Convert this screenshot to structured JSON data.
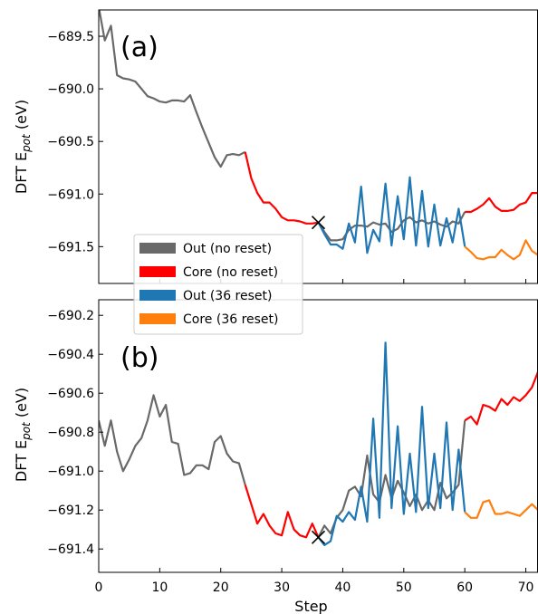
{
  "chart_data": {
    "type": "line",
    "legend": {
      "placement": "lower-left of panel (a)",
      "entries": [
        {
          "label": "Out (no reset)",
          "color": "#696969"
        },
        {
          "label": "Core (no reset)",
          "color": "#ff0000"
        },
        {
          "label": "Out (36 reset)",
          "color": "#1f77b4"
        },
        {
          "label": "Core (36 reset)",
          "color": "#ff7f0e"
        }
      ]
    },
    "xlabel": "Step",
    "xlim": [
      0,
      72
    ],
    "x_ticks": [
      0,
      10,
      20,
      30,
      40,
      50,
      60,
      70
    ],
    "marker": {
      "symbol": "×",
      "x": 36
    },
    "panels": [
      {
        "tag": "(a)",
        "ylabel_main": "DFT E",
        "ylabel_sub": "pot",
        "ylabel_tail": " (eV)",
        "ylim": [
          -691.85,
          -689.25
        ],
        "y_ticks": [
          "−689.5",
          "−690.0",
          "−690.5",
          "−691.0",
          "−691.5"
        ],
        "y_tick_values": [
          -689.5,
          -690.0,
          -690.5,
          -691.0,
          -691.5
        ],
        "marker_y": -691.27,
        "series": [
          {
            "name": "Out (no reset)",
            "color": "#696969",
            "x": [
              0,
              1,
              2,
              3,
              4,
              5,
              6,
              7,
              8,
              9,
              10,
              11,
              12,
              13,
              14,
              15,
              16,
              17,
              18,
              19,
              20,
              21,
              22,
              23,
              24
            ],
            "y": [
              -689.22,
              -689.54,
              -689.4,
              -689.87,
              -689.9,
              -689.91,
              -689.93,
              -690.0,
              -690.07,
              -690.09,
              -690.12,
              -690.13,
              -690.11,
              -690.11,
              -690.12,
              -690.06,
              -690.22,
              -690.37,
              -690.51,
              -690.65,
              -690.74,
              -690.63,
              -690.62,
              -690.63,
              -690.6
            ]
          },
          {
            "name": "Core (no reset)",
            "color": "#ff0000",
            "x": [
              24,
              25,
              26,
              27,
              28,
              29,
              30,
              31,
              32,
              33,
              34,
              35,
              36
            ],
            "y": [
              -690.6,
              -690.85,
              -690.99,
              -691.08,
              -691.08,
              -691.14,
              -691.22,
              -691.25,
              -691.25,
              -691.26,
              -691.28,
              -691.28,
              -691.27
            ]
          },
          {
            "name": "Out (no reset)",
            "color": "#696969",
            "x": [
              36,
              37,
              38,
              39,
              40,
              41,
              42,
              43,
              44,
              45,
              46,
              47,
              48,
              49,
              50,
              51,
              52,
              53,
              54,
              55,
              56,
              57,
              58,
              59,
              60
            ],
            "y": [
              -691.27,
              -691.36,
              -691.44,
              -691.44,
              -691.43,
              -691.34,
              -691.3,
              -691.3,
              -691.31,
              -691.27,
              -691.29,
              -691.28,
              -691.36,
              -691.33,
              -691.25,
              -691.22,
              -691.27,
              -691.25,
              -691.28,
              -691.26,
              -691.29,
              -691.31,
              -691.26,
              -691.28,
              -691.17
            ]
          },
          {
            "name": "Core (no reset)",
            "color": "#ff0000",
            "x": [
              60,
              61,
              62,
              63,
              64,
              65,
              66,
              67,
              68,
              69,
              70,
              71,
              72
            ],
            "y": [
              -691.17,
              -691.17,
              -691.14,
              -691.1,
              -691.04,
              -691.12,
              -691.16,
              -691.16,
              -691.15,
              -691.1,
              -691.08,
              -690.99,
              -690.99
            ]
          },
          {
            "name": "Out (36 reset)",
            "color": "#1f77b4",
            "x": [
              36,
              37,
              38,
              39,
              40,
              41,
              42,
              43,
              44,
              45,
              46,
              47,
              48,
              49,
              50,
              51,
              52,
              53,
              54,
              55,
              56,
              57,
              58,
              59,
              60
            ],
            "y": [
              -691.27,
              -691.38,
              -691.48,
              -691.48,
              -691.52,
              -691.28,
              -691.46,
              -690.93,
              -691.56,
              -691.34,
              -691.45,
              -690.9,
              -691.49,
              -691.02,
              -691.43,
              -690.84,
              -691.49,
              -690.97,
              -691.5,
              -691.1,
              -691.49,
              -691.23,
              -691.46,
              -691.14,
              -691.5
            ]
          },
          {
            "name": "Core (36 reset)",
            "color": "#ff7f0e",
            "x": [
              60,
              61,
              62,
              63,
              64,
              65,
              66,
              67,
              68,
              69,
              70,
              71,
              72
            ],
            "y": [
              -691.5,
              -691.55,
              -691.61,
              -691.62,
              -691.6,
              -691.6,
              -691.53,
              -691.58,
              -691.62,
              -691.58,
              -691.44,
              -691.54,
              -691.58
            ]
          }
        ]
      },
      {
        "tag": "(b)",
        "ylabel_main": "DFT E",
        "ylabel_sub": "pot",
        "ylabel_tail": " (eV)",
        "ylim": [
          -691.52,
          -690.12
        ],
        "y_ticks": [
          "−690.2",
          "−690.4",
          "−690.6",
          "−690.8",
          "−691.0",
          "−691.2",
          "−691.4"
        ],
        "y_tick_values": [
          -690.2,
          -690.4,
          -690.6,
          -690.8,
          -691.0,
          -691.2,
          -691.4
        ],
        "marker_y": -691.34,
        "series": [
          {
            "name": "Out (no reset)",
            "color": "#696969",
            "x": [
              0,
              1,
              2,
              3,
              4,
              5,
              6,
              7,
              8,
              9,
              10,
              11,
              12,
              13,
              14,
              15,
              16,
              17,
              18,
              19,
              20,
              21,
              22,
              23,
              24
            ],
            "y": [
              -690.74,
              -690.87,
              -690.74,
              -690.9,
              -691.0,
              -690.94,
              -690.87,
              -690.83,
              -690.74,
              -690.61,
              -690.72,
              -690.66,
              -690.85,
              -690.86,
              -691.02,
              -691.01,
              -690.97,
              -690.97,
              -690.99,
              -690.85,
              -690.82,
              -690.91,
              -690.95,
              -690.96,
              -691.07
            ]
          },
          {
            "name": "Core (no reset)",
            "color": "#ff0000",
            "x": [
              24,
              25,
              26,
              27,
              28,
              29,
              30,
              31,
              32,
              33,
              34,
              35,
              36
            ],
            "y": [
              -691.07,
              -691.17,
              -691.27,
              -691.22,
              -691.28,
              -691.32,
              -691.33,
              -691.21,
              -691.3,
              -691.33,
              -691.34,
              -691.27,
              -691.34
            ]
          },
          {
            "name": "Out (no reset)",
            "color": "#696969",
            "x": [
              36,
              37,
              38,
              39,
              40,
              41,
              42,
              43,
              44,
              45,
              46,
              47,
              48,
              49,
              50,
              51,
              52,
              53,
              54,
              55,
              56,
              57,
              58,
              59,
              60
            ],
            "y": [
              -691.34,
              -691.28,
              -691.32,
              -691.24,
              -691.2,
              -691.1,
              -691.08,
              -691.13,
              -690.92,
              -691.12,
              -691.16,
              -691.02,
              -691.14,
              -691.05,
              -691.11,
              -691.18,
              -691.12,
              -691.2,
              -691.15,
              -691.2,
              -691.06,
              -691.14,
              -691.11,
              -691.07,
              -690.74
            ]
          },
          {
            "name": "Core (no reset)",
            "color": "#ff0000",
            "x": [
              60,
              61,
              62,
              63,
              64,
              65,
              66,
              67,
              68,
              69,
              70,
              71,
              72
            ],
            "y": [
              -690.74,
              -690.72,
              -690.76,
              -690.66,
              -690.67,
              -690.69,
              -690.63,
              -690.66,
              -690.62,
              -690.64,
              -690.61,
              -690.57,
              -690.49
            ]
          },
          {
            "name": "Out (36 reset)",
            "color": "#1f77b4",
            "x": [
              36,
              37,
              38,
              39,
              40,
              41,
              42,
              43,
              44,
              45,
              46,
              47,
              48,
              49,
              50,
              51,
              52,
              53,
              54,
              55,
              56,
              57,
              58,
              59,
              60
            ],
            "y": [
              -691.34,
              -691.38,
              -691.36,
              -691.23,
              -691.26,
              -691.21,
              -691.25,
              -691.08,
              -691.26,
              -690.73,
              -691.24,
              -690.34,
              -691.19,
              -690.77,
              -691.22,
              -690.91,
              -691.21,
              -690.67,
              -691.19,
              -690.91,
              -691.19,
              -690.75,
              -691.2,
              -690.89,
              -691.21
            ]
          },
          {
            "name": "Core (36 reset)",
            "color": "#ff7f0e",
            "x": [
              60,
              61,
              62,
              63,
              64,
              65,
              66,
              67,
              68,
              69,
              70,
              71,
              72
            ],
            "y": [
              -691.21,
              -691.24,
              -691.24,
              -691.16,
              -691.15,
              -691.22,
              -691.22,
              -691.21,
              -691.22,
              -691.23,
              -691.2,
              -691.17,
              -691.2
            ]
          }
        ]
      }
    ]
  }
}
